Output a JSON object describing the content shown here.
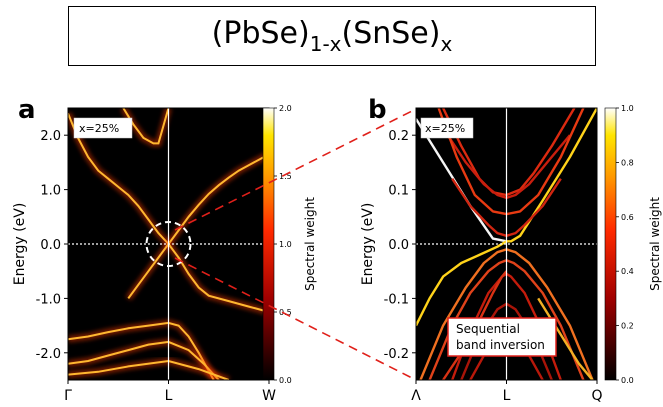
{
  "title": {
    "parts": [
      {
        "text": "(PbSe)",
        "sub": false
      },
      {
        "text": "1-x",
        "sub": true
      },
      {
        "text": "(SnSe)",
        "sub": false
      },
      {
        "text": "x",
        "sub": true
      }
    ]
  },
  "chart_data": [
    {
      "type": "heatmap",
      "panel_label": "a",
      "annotation": "x=25%",
      "ylabel": "Energy (eV)",
      "ylim": [
        -2.5,
        2.5
      ],
      "yticks": [
        2.0,
        1.0,
        0.0,
        -1.0,
        -2.0
      ],
      "ytick_labels": [
        "2.0",
        "1.0",
        "0.0",
        "-1.0",
        "-2.0"
      ],
      "x_categories": [
        "Γ",
        "L",
        "W"
      ],
      "fermi_level": 0.0,
      "colorbar": {
        "label": "Spectral weight",
        "range": [
          0.0,
          2.0
        ],
        "ticks": [
          "0.0",
          "0.5",
          "1.0",
          "1.5",
          "2.0"
        ]
      },
      "bands": [
        {
          "name": "conduction-upper",
          "k": [
            0.55,
            0.65,
            0.75,
            0.85,
            0.9,
            1.0
          ],
          "e": [
            2.5,
            2.2,
            1.95,
            1.85,
            1.85,
            2.5
          ]
        },
        {
          "name": "conduction-left",
          "k": [
            0.0,
            0.1,
            0.2,
            0.3,
            0.4,
            0.5,
            0.6,
            0.7,
            0.8,
            0.9,
            1.0
          ],
          "e": [
            2.4,
            1.95,
            1.6,
            1.35,
            1.2,
            1.05,
            0.9,
            0.7,
            0.45,
            0.2,
            0.0
          ]
        },
        {
          "name": "conduction-right",
          "k": [
            1.0,
            1.1,
            1.2,
            1.3,
            1.4,
            1.5,
            1.6,
            1.7,
            1.8,
            1.9,
            2.0
          ],
          "e": [
            0.0,
            0.25,
            0.5,
            0.72,
            0.92,
            1.08,
            1.22,
            1.35,
            1.45,
            1.55,
            1.65
          ]
        },
        {
          "name": "valence-left",
          "k": [
            0.6,
            0.7,
            0.8,
            0.9,
            1.0
          ],
          "e": [
            -1.0,
            -0.75,
            -0.5,
            -0.25,
            0.0
          ]
        },
        {
          "name": "valence-right",
          "k": [
            1.0,
            1.1,
            1.2,
            1.3,
            1.4,
            1.6,
            1.8,
            2.0
          ],
          "e": [
            0.0,
            -0.25,
            -0.55,
            -0.8,
            -0.95,
            -1.05,
            -1.15,
            -1.25
          ]
        },
        {
          "name": "deep-1",
          "k": [
            0.0,
            0.2,
            0.4,
            0.6,
            0.8,
            1.0,
            1.1,
            1.2,
            1.3,
            1.45
          ],
          "e": [
            -1.75,
            -1.7,
            -1.62,
            -1.55,
            -1.5,
            -1.45,
            -1.5,
            -1.7,
            -2.0,
            -2.5
          ]
        },
        {
          "name": "deep-2",
          "k": [
            0.0,
            0.2,
            0.4,
            0.6,
            0.8,
            1.0,
            1.2,
            1.35,
            1.5
          ],
          "e": [
            -2.2,
            -2.15,
            -2.05,
            -1.95,
            -1.85,
            -1.8,
            -1.95,
            -2.2,
            -2.5
          ]
        },
        {
          "name": "deep-3",
          "k": [
            0.0,
            0.3,
            0.6,
            1.0,
            1.3,
            1.6
          ],
          "e": [
            -2.4,
            -2.35,
            -2.25,
            -2.15,
            -2.3,
            -2.5
          ]
        }
      ]
    },
    {
      "type": "line",
      "panel_label": "b",
      "annotation": "x=25%",
      "inset_label": "Sequential band inversion",
      "ylabel": "Energy (eV)",
      "ylim": [
        -0.25,
        0.25
      ],
      "yticks": [
        0.2,
        0.1,
        0.0,
        -0.1,
        -0.2
      ],
      "ytick_labels": [
        "0.2",
        "0.1",
        "0.0",
        "-0.1",
        "-0.2"
      ],
      "x_categories": [
        "Λ",
        "L",
        "Q"
      ],
      "fermi_level": 0.0,
      "colorbar": {
        "label": "Spectral weight",
        "range": [
          0.0,
          1.0
        ],
        "ticks": [
          "0.0",
          "0.2",
          "0.4",
          "0.6",
          "0.8",
          "1.0"
        ]
      },
      "bands": [
        {
          "name": "white",
          "color": "#f5f5f5",
          "k": [
            0.0,
            0.3,
            0.6,
            0.85,
            1.0
          ],
          "e": [
            0.23,
            0.15,
            0.07,
            0.01,
            0.005
          ]
        },
        {
          "name": "yellow",
          "color": "#ffd31a",
          "k": [
            0.0,
            0.15,
            0.3,
            0.5,
            0.7,
            0.9,
            1.0,
            1.05,
            1.15,
            1.4,
            1.7,
            2.0
          ],
          "e": [
            -0.15,
            -0.1,
            -0.06,
            -0.035,
            -0.02,
            -0.005,
            0.005,
            0.005,
            0.015,
            0.08,
            0.16,
            0.25
          ]
        },
        {
          "name": "c1",
          "color": "#dc2a10",
          "k": [
            0.3,
            0.5,
            0.7,
            0.85,
            1.0,
            1.15,
            1.3,
            1.5,
            1.75
          ],
          "e": [
            0.25,
            0.18,
            0.12,
            0.095,
            0.09,
            0.1,
            0.13,
            0.18,
            0.25
          ]
        },
        {
          "name": "c2",
          "color": "#c81e0e",
          "k": [
            0.35,
            0.55,
            0.75,
            0.9,
            1.0,
            1.1,
            1.25,
            1.45,
            1.7
          ],
          "e": [
            0.2,
            0.15,
            0.11,
            0.09,
            0.085,
            0.09,
            0.11,
            0.15,
            0.2
          ]
        },
        {
          "name": "c3",
          "color": "#e83a12",
          "k": [
            0.25,
            0.45,
            0.65,
            0.85,
            1.0,
            1.15,
            1.35,
            1.6,
            1.85
          ],
          "e": [
            0.25,
            0.16,
            0.09,
            0.06,
            0.055,
            0.06,
            0.09,
            0.16,
            0.25
          ]
        },
        {
          "name": "c4",
          "color": "#d02510",
          "k": [
            0.4,
            0.6,
            0.8,
            0.9,
            1.0,
            1.1,
            1.2,
            1.4,
            1.6
          ],
          "e": [
            0.12,
            0.07,
            0.035,
            0.02,
            0.015,
            0.02,
            0.035,
            0.07,
            0.12
          ]
        },
        {
          "name": "v1",
          "color": "#f07020",
          "k": [
            0.05,
            0.3,
            0.55,
            0.75,
            0.9,
            1.0,
            1.1,
            1.25,
            1.45,
            1.7,
            1.95
          ],
          "e": [
            -0.25,
            -0.15,
            -0.08,
            -0.035,
            -0.015,
            -0.01,
            -0.015,
            -0.035,
            -0.08,
            -0.15,
            -0.25
          ]
        },
        {
          "name": "v2",
          "color": "#e0421a",
          "k": [
            0.15,
            0.4,
            0.6,
            0.8,
            0.92,
            1.0,
            1.08,
            1.2,
            1.4,
            1.6,
            1.85
          ],
          "e": [
            -0.25,
            -0.15,
            -0.09,
            -0.05,
            -0.035,
            -0.03,
            -0.035,
            -0.05,
            -0.09,
            -0.15,
            -0.25
          ]
        },
        {
          "name": "v3",
          "color": "#c41c0c",
          "k": [
            0.4,
            0.6,
            0.8,
            0.95,
            1.0,
            1.05,
            1.2,
            1.4,
            1.6
          ],
          "e": [
            -0.25,
            -0.16,
            -0.09,
            -0.06,
            -0.055,
            -0.06,
            -0.09,
            -0.16,
            -0.25
          ]
        },
        {
          "name": "v4",
          "color": "#a81408",
          "k": [
            0.5,
            0.7,
            0.9,
            1.0,
            1.1,
            1.3,
            1.5
          ],
          "e": [
            -0.25,
            -0.17,
            -0.12,
            -0.11,
            -0.12,
            -0.17,
            -0.25
          ]
        },
        {
          "name": "v5",
          "color": "#b8180a",
          "k": [
            0.6,
            0.8,
            0.95,
            1.0,
            1.05,
            1.2,
            1.4
          ],
          "e": [
            -0.25,
            -0.19,
            -0.155,
            -0.15,
            -0.155,
            -0.19,
            -0.25
          ]
        },
        {
          "name": "v6",
          "color": "#d83214",
          "k": [
            0.3,
            0.5,
            0.7,
            0.85,
            0.95,
            1.0
          ],
          "e": [
            -0.25,
            -0.2,
            -0.14,
            -0.09,
            -0.06,
            -0.05
          ]
        },
        {
          "name": "v7",
          "color": "#f2b024",
          "k": [
            1.35,
            1.5,
            1.65,
            1.8,
            1.95
          ],
          "e": [
            -0.1,
            -0.14,
            -0.18,
            -0.22,
            -0.25
          ]
        }
      ]
    }
  ]
}
